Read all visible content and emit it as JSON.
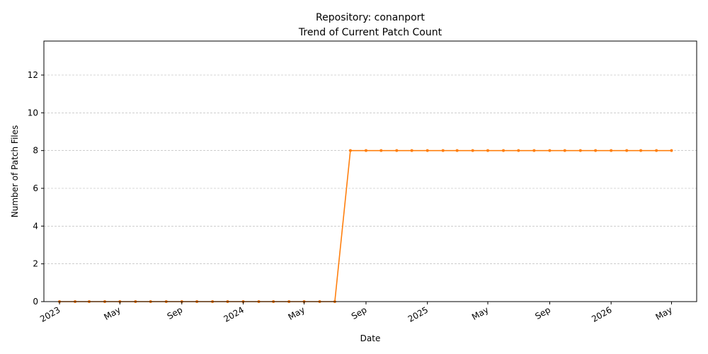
{
  "chart_data": {
    "type": "line",
    "title": "Repository: conanport",
    "subtitle": "Trend of Current Patch Count",
    "xlabel": "Date",
    "ylabel": "Number of Patch Files",
    "ylim": [
      0,
      13.8
    ],
    "xlim": [
      "2022-12-01",
      "2026-06-20"
    ],
    "yticks": [
      0,
      2,
      4,
      6,
      8,
      10,
      12
    ],
    "xticks": [
      {
        "date": "2023-01-01",
        "label": "2023"
      },
      {
        "date": "2023-05-01",
        "label": "May"
      },
      {
        "date": "2023-09-01",
        "label": "Sep"
      },
      {
        "date": "2024-01-01",
        "label": "2024"
      },
      {
        "date": "2024-05-01",
        "label": "May"
      },
      {
        "date": "2024-09-01",
        "label": "Sep"
      },
      {
        "date": "2025-01-01",
        "label": "2025"
      },
      {
        "date": "2025-05-01",
        "label": "May"
      },
      {
        "date": "2025-09-01",
        "label": "Sep"
      },
      {
        "date": "2026-01-01",
        "label": "2026"
      },
      {
        "date": "2026-05-01",
        "label": "May"
      }
    ],
    "grid": "y-dashed",
    "color": "#ff7f0e",
    "series": [
      {
        "x": [
          "2023-01-01",
          "2023-02-01",
          "2023-03-01",
          "2023-04-01",
          "2023-05-01",
          "2023-06-01",
          "2023-07-01",
          "2023-08-01",
          "2023-09-01",
          "2023-10-01",
          "2023-11-01",
          "2023-12-01",
          "2024-01-01",
          "2024-02-01",
          "2024-03-01",
          "2024-04-01",
          "2024-05-01",
          "2024-06-01",
          "2024-07-01",
          "2024-08-01",
          "2024-09-01",
          "2024-10-01",
          "2024-11-01",
          "2024-12-01",
          "2025-01-01",
          "2025-02-01",
          "2025-03-01",
          "2025-04-01",
          "2025-05-01",
          "2025-06-01",
          "2025-07-01",
          "2025-08-01",
          "2025-09-01",
          "2025-10-01",
          "2025-11-01",
          "2025-12-01",
          "2026-01-01",
          "2026-02-01",
          "2026-03-01",
          "2026-04-01",
          "2026-05-01"
        ],
        "values": [
          0,
          0,
          0,
          0,
          0,
          0,
          0,
          0,
          0,
          0,
          0,
          0,
          0,
          0,
          0,
          0,
          0,
          0,
          0,
          8,
          8,
          8,
          8,
          8,
          8,
          8,
          8,
          8,
          8,
          8,
          8,
          8,
          8,
          8,
          8,
          8,
          8,
          8,
          8,
          8,
          8
        ]
      }
    ]
  }
}
